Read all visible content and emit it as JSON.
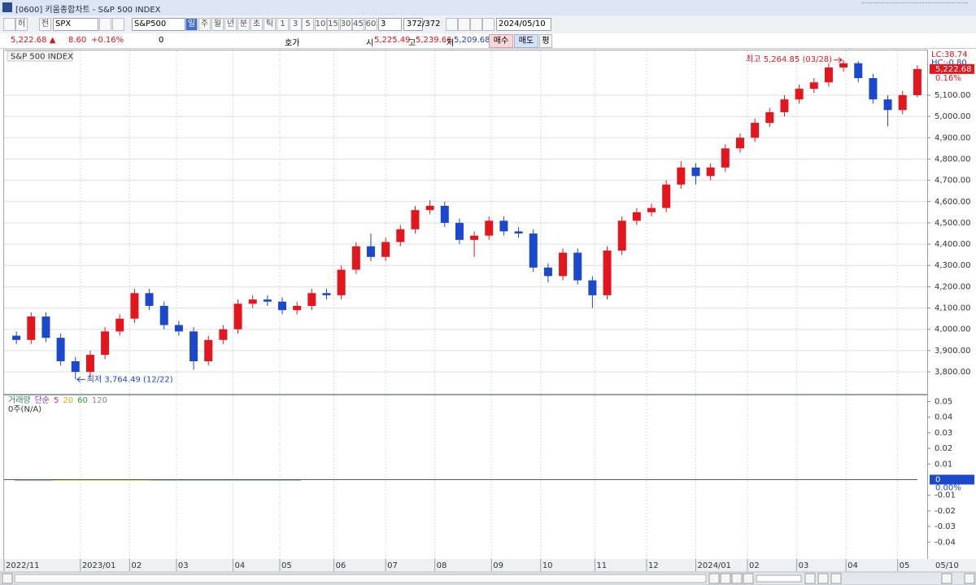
{
  "window": {
    "title": "[0600] 키움종합차트 - S&P 500 INDEX"
  },
  "toolbar": {
    "type_label": "허",
    "market": "전",
    "code": "SPX",
    "name": "S&P500",
    "periods": [
      "일",
      "주",
      "월",
      "년",
      "분",
      "초",
      "틱"
    ],
    "intervals": [
      "1",
      "3",
      "5",
      "10",
      "15",
      "30",
      "45",
      "60"
    ],
    "count_select": "3",
    "count": "372",
    "total": "/372",
    "date": "2024/05/10"
  },
  "quote": {
    "price": "5,222.68 ▲",
    "change": "8.60",
    "change_pct": "+0.16%",
    "volume": "0",
    "order_book": "호가",
    "open_label": "시",
    "open": "5,225.49",
    "high_label": "고",
    "high": "5,239.66",
    "low_label": "저",
    "low": "5,209.68",
    "buy": "매수",
    "sell": "매도",
    "avg": "평"
  },
  "chart_data": [
    {
      "type": "candlestick",
      "title": "S&P 500 INDEX",
      "x": [
        5,
        11,
        17,
        23,
        29,
        35,
        41,
        47,
        53,
        59,
        65,
        71,
        77,
        83,
        89,
        95,
        101,
        107,
        113,
        119,
        125,
        131,
        137,
        143,
        149,
        155,
        161,
        167,
        173,
        179,
        185,
        191,
        197,
        203,
        209,
        215,
        221,
        227,
        233,
        239,
        245,
        251,
        257,
        263,
        269,
        275,
        281,
        287,
        293,
        299,
        305,
        311,
        317,
        323,
        329,
        335,
        341,
        347,
        353,
        359,
        365,
        371
      ],
      "open": [
        3970,
        3950,
        4060,
        3960,
        3850,
        3800,
        3880,
        3990,
        4050,
        4170,
        4110,
        4020,
        3990,
        3850,
        3950,
        4000,
        4120,
        4140,
        4130,
        4090,
        4110,
        4170,
        4160,
        4280,
        4390,
        4340,
        4410,
        4470,
        4560,
        4580,
        4500,
        4420,
        4440,
        4510,
        4460,
        4450,
        4290,
        4250,
        4360,
        4230,
        4160,
        4370,
        4510,
        4550,
        4570,
        4680,
        4760,
        4720,
        4760,
        4850,
        4900,
        4970,
        5020,
        5080,
        5130,
        5160,
        5230,
        5250,
        5180,
        5080,
        5030,
        5100
      ],
      "high": [
        3990,
        4080,
        4080,
        3980,
        3870,
        3900,
        4010,
        4070,
        4190,
        4190,
        4130,
        4040,
        4010,
        3970,
        4020,
        4140,
        4160,
        4160,
        4150,
        4130,
        4190,
        4190,
        4300,
        4410,
        4450,
        4430,
        4490,
        4580,
        4607,
        4600,
        4520,
        4460,
        4530,
        4530,
        4480,
        4470,
        4310,
        4380,
        4380,
        4250,
        4390,
        4530,
        4570,
        4590,
        4700,
        4790,
        4780,
        4780,
        4870,
        4920,
        4990,
        5040,
        5100,
        5150,
        5180,
        5250,
        5264.85,
        5260,
        5200,
        5100,
        5120,
        5240
      ],
      "low": [
        3930,
        3930,
        3940,
        3830,
        3764.49,
        3780,
        3860,
        3970,
        4030,
        4090,
        4000,
        3970,
        3810,
        3830,
        3930,
        3980,
        4100,
        4110,
        4070,
        4070,
        4090,
        4140,
        4140,
        4260,
        4320,
        4320,
        4390,
        4450,
        4540,
        4480,
        4400,
        4340,
        4420,
        4440,
        4430,
        4270,
        4220,
        4230,
        4210,
        4100,
        4140,
        4350,
        4490,
        4530,
        4550,
        4660,
        4680,
        4700,
        4740,
        4830,
        4880,
        4950,
        5000,
        5060,
        5110,
        5140,
        5210,
        5160,
        5060,
        4953,
        5010,
        5090
      ],
      "close": [
        3950,
        4060,
        3960,
        3850,
        3800,
        3880,
        3990,
        4050,
        4170,
        4110,
        4020,
        3990,
        3850,
        3950,
        4000,
        4120,
        4140,
        4130,
        4090,
        4110,
        4170,
        4160,
        4280,
        4390,
        4340,
        4410,
        4470,
        4560,
        4580,
        4500,
        4420,
        4440,
        4510,
        4460,
        4450,
        4290,
        4250,
        4360,
        4230,
        4160,
        4370,
        4510,
        4550,
        4570,
        4680,
        4760,
        4720,
        4760,
        4850,
        4900,
        4970,
        5020,
        5080,
        5130,
        5160,
        5230,
        5250,
        5180,
        5080,
        5030,
        5100,
        5222.68
      ],
      "colors": {
        "up": "#e3161d",
        "down": "#1b48cc"
      },
      "xlim": [
        0,
        375
      ],
      "xticks": [
        {
          "value": 0,
          "label": "2022/11"
        },
        {
          "value": 31,
          "label": "2023/01"
        },
        {
          "value": 51,
          "label": "02"
        },
        {
          "value": 70,
          "label": "03"
        },
        {
          "value": 93,
          "label": "04"
        },
        {
          "value": 112,
          "label": "05"
        },
        {
          "value": 134,
          "label": "06"
        },
        {
          "value": 155,
          "label": "07"
        },
        {
          "value": 175,
          "label": "08"
        },
        {
          "value": 198,
          "label": "09"
        },
        {
          "value": 218,
          "label": "10"
        },
        {
          "value": 240,
          "label": "11"
        },
        {
          "value": 261,
          "label": "12"
        },
        {
          "value": 281,
          "label": "2024/01"
        },
        {
          "value": 302,
          "label": "02"
        },
        {
          "value": 322,
          "label": "03"
        },
        {
          "value": 342,
          "label": "04"
        },
        {
          "value": 363,
          "label": "05"
        }
      ],
      "last_date": "05/10",
      "ylim": [
        3697,
        5310
      ],
      "yticks": [
        {
          "value": 3800,
          "label": "3,800.00"
        },
        {
          "value": 3900,
          "label": "3,900.00"
        },
        {
          "value": 4000,
          "label": "4,000.00"
        },
        {
          "value": 4100,
          "label": "4,100.00"
        },
        {
          "value": 4200,
          "label": "4,200.00"
        },
        {
          "value": 4300,
          "label": "4,300.00"
        },
        {
          "value": 4400,
          "label": "4,400.00"
        },
        {
          "value": 4500,
          "label": "4,500.00"
        },
        {
          "value": 4600,
          "label": "4,600.00"
        },
        {
          "value": 4700,
          "label": "4,700.00"
        },
        {
          "value": 4800,
          "label": "4,800.00"
        },
        {
          "value": 4900,
          "label": "4,900.00"
        },
        {
          "value": 5000,
          "label": "5,000.00"
        },
        {
          "value": 5100,
          "label": "5,100.00"
        }
      ],
      "grid": true,
      "annotations": {
        "high": "최고 5,264.85 (03/28)",
        "low": "최저 3,764.49 (12/22)"
      },
      "lc_label": "LC:38.74",
      "hc_label": "HC:-0.80",
      "last_price": "5,222.68",
      "last_change": "0.16%"
    },
    {
      "type": "line",
      "legend": [
        {
          "text": "거래량",
          "color": "#2e8b57"
        },
        {
          "text": "단순",
          "color": "#8a2be2"
        },
        {
          "text": "5",
          "color": "#c0309c"
        },
        {
          "text": "20",
          "color": "#d4b000"
        },
        {
          "text": "60",
          "color": "#2e9e3e"
        },
        {
          "text": "120",
          "color": "#888888"
        }
      ],
      "note": "0주(N/A)",
      "ylim": [
        -0.0508,
        0.0539
      ],
      "yticks": [
        0.05,
        0.04,
        0.03,
        0.02,
        0.01,
        -0.01,
        -0.02,
        -0.03,
        -0.04
      ],
      "zero_label": "0",
      "zero_pct": "0.00%"
    }
  ]
}
